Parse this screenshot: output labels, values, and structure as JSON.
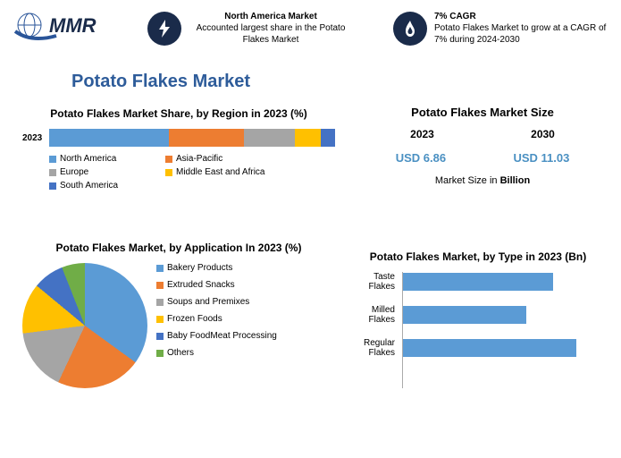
{
  "logo": {
    "text": "MMR",
    "globe_color": "#2a5599",
    "swoosh_color": "#2a5599"
  },
  "header": {
    "callout1": {
      "icon": "bolt",
      "title": "North America Market",
      "text": "Accounted largest share in the Potato Flakes Market"
    },
    "callout2": {
      "icon": "flame",
      "title": "7% CAGR",
      "text": "Potato Flakes Market to grow at a CAGR of 7% during 2024-2030"
    }
  },
  "main_title": "Potato Flakes Market",
  "region_chart": {
    "title": "Potato Flakes Market Share, by Region in 2023 (%)",
    "year_label": "2023",
    "segments": [
      {
        "label": "North America",
        "value": 42,
        "color": "#5b9bd5"
      },
      {
        "label": "Asia-Pacific",
        "value": 26,
        "color": "#ed7d31"
      },
      {
        "label": "Europe",
        "value": 18,
        "color": "#a5a5a5"
      },
      {
        "label": "Middle East and Africa",
        "value": 9,
        "color": "#ffc000"
      },
      {
        "label": "South America",
        "value": 5,
        "color": "#4472c4"
      }
    ]
  },
  "market_size": {
    "title": "Potato Flakes Market Size",
    "year1": "2023",
    "value1": "USD 6.86",
    "year2": "2030",
    "value2": "USD 11.03",
    "note_prefix": "Market Size in ",
    "note_bold": "Billion",
    "value_color": "#4a90c2"
  },
  "app_chart": {
    "title": "Potato Flakes Market, by Application In 2023 (%)",
    "slices": [
      {
        "label": "Bakery Products",
        "value": 35,
        "color": "#5b9bd5"
      },
      {
        "label": "Extruded Snacks",
        "value": 22,
        "color": "#ed7d31"
      },
      {
        "label": "Soups and Premixes",
        "value": 16,
        "color": "#a5a5a5"
      },
      {
        "label": "Frozen Foods",
        "value": 13,
        "color": "#ffc000"
      },
      {
        "label": "Baby FoodMeat Processing",
        "value": 8,
        "color": "#4472c4"
      },
      {
        "label": "Others",
        "value": 6,
        "color": "#70ad47"
      }
    ]
  },
  "type_chart": {
    "title": "Potato Flakes Market, by Type in 2023 (Bn)",
    "bars": [
      {
        "label": "Taste Flakes",
        "value": 2.3
      },
      {
        "label": "Milled Flakes",
        "value": 1.9
      },
      {
        "label": "Regular Flakes",
        "value": 2.66
      }
    ],
    "max": 3.0,
    "bar_color": "#5b9bd5"
  }
}
